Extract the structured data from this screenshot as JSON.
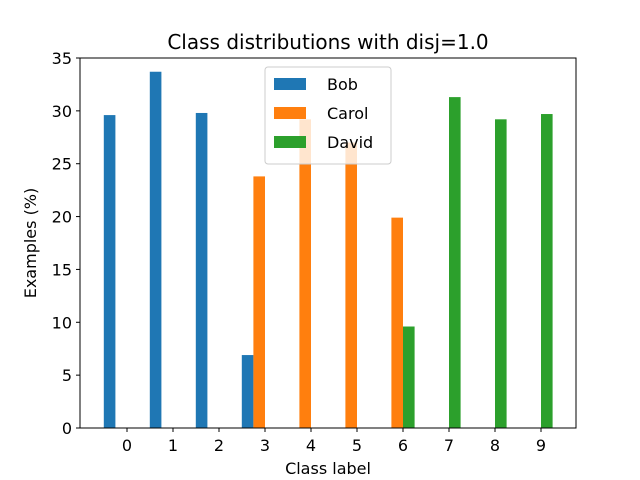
{
  "chart_data": {
    "type": "bar",
    "title": "Class distributions with disj=1.0",
    "xlabel": "Class label",
    "ylabel": "Examples (%)",
    "categories": [
      "0",
      "1",
      "2",
      "3",
      "4",
      "5",
      "6",
      "7",
      "8",
      "9"
    ],
    "ylim": [
      0,
      35
    ],
    "yticks": [
      0,
      5,
      10,
      15,
      20,
      25,
      30,
      35
    ],
    "grid": false,
    "legend_position": "upper-center",
    "series": [
      {
        "name": "Bob",
        "color": "#1f77b4",
        "values": [
          29.6,
          33.7,
          29.8,
          6.9,
          0,
          0,
          0,
          0,
          0,
          0
        ]
      },
      {
        "name": "Carol",
        "color": "#ff7f0e",
        "values": [
          0,
          0,
          0,
          23.8,
          29.2,
          27.0,
          19.9,
          0,
          0,
          0
        ]
      },
      {
        "name": "David",
        "color": "#2ca02c",
        "values": [
          0,
          0,
          0,
          0,
          0,
          0,
          9.6,
          31.3,
          29.2,
          29.7
        ]
      }
    ]
  }
}
